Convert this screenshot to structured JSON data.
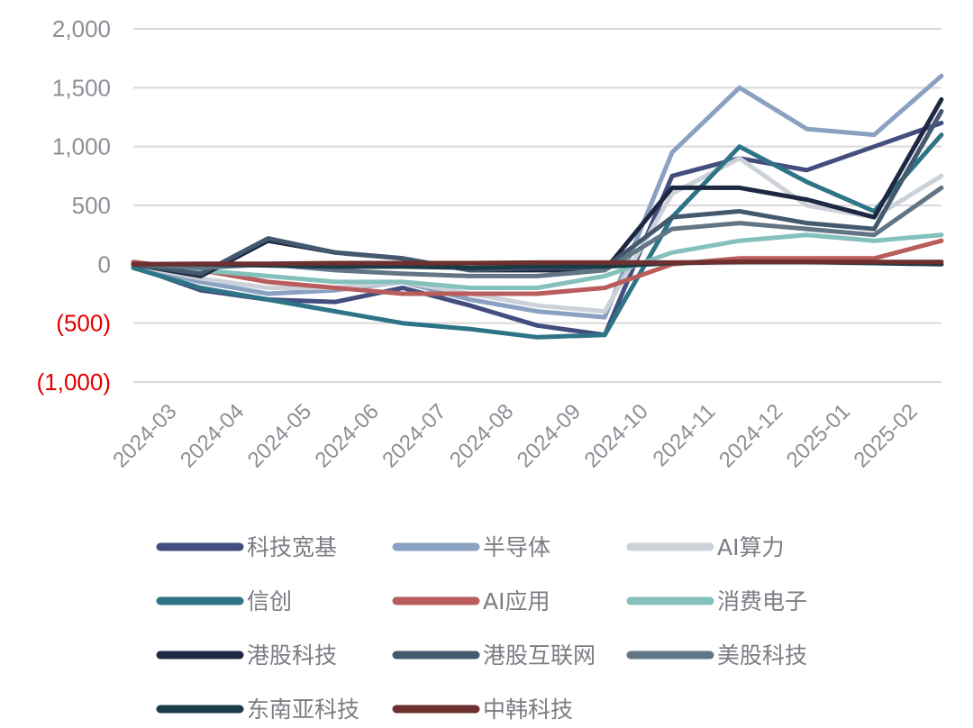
{
  "chart_data": {
    "type": "line",
    "title": "",
    "xlabel": "",
    "ylabel": "",
    "ylim": [
      -1000,
      2000
    ],
    "y_ticks": [
      {
        "value": 2000,
        "label": "2,000",
        "color": "#8c8f96"
      },
      {
        "value": 1500,
        "label": "1,500",
        "color": "#8c8f96"
      },
      {
        "value": 1000,
        "label": "1,000",
        "color": "#8c8f96"
      },
      {
        "value": 500,
        "label": "500",
        "color": "#8c8f96"
      },
      {
        "value": 0,
        "label": "0",
        "color": "#8c8f96"
      },
      {
        "value": -500,
        "label": "(500)",
        "color": "#e00000"
      },
      {
        "value": -1000,
        "label": "(1,000)",
        "color": "#e00000"
      }
    ],
    "x_ticks": [
      "2024-03",
      "2024-04",
      "2024-05",
      "2024-06",
      "2024-07",
      "2024-08",
      "2024-09",
      "2024-10",
      "2024-11",
      "2024-12",
      "2025-01",
      "2025-02"
    ],
    "grid": "horizontal",
    "legend_position": "bottom",
    "series": [
      {
        "name": "科技宽基",
        "color": "#434e7e",
        "values": [
          -20,
          -220,
          -300,
          -320,
          -200,
          -350,
          -520,
          -600,
          750,
          900,
          800,
          1000,
          1200
        ]
      },
      {
        "name": "半导体",
        "color": "#8aa1c1",
        "values": [
          -20,
          -150,
          -250,
          -220,
          -150,
          -300,
          -400,
          -450,
          950,
          1500,
          1150,
          1100,
          1600
        ]
      },
      {
        "name": "AI算力",
        "color": "#cdd1d8",
        "values": [
          -10,
          -120,
          -200,
          -200,
          -150,
          -250,
          -350,
          -400,
          600,
          900,
          500,
          400,
          750
        ]
      },
      {
        "name": "信创",
        "color": "#2e7487",
        "values": [
          -30,
          -200,
          -300,
          -400,
          -500,
          -550,
          -620,
          -600,
          400,
          1000,
          700,
          450,
          1100
        ]
      },
      {
        "name": "AI应用",
        "color": "#b85c5c",
        "values": [
          20,
          -50,
          -150,
          -200,
          -250,
          -250,
          -250,
          -200,
          0,
          50,
          50,
          50,
          200
        ]
      },
      {
        "name": "消费电子",
        "color": "#84c1bc",
        "values": [
          0,
          -50,
          -100,
          -150,
          -150,
          -200,
          -200,
          -100,
          100,
          200,
          250,
          200,
          250
        ]
      },
      {
        "name": "港股科技",
        "color": "#1f2843",
        "values": [
          0,
          -100,
          200,
          100,
          50,
          -50,
          -50,
          -50,
          650,
          650,
          550,
          400,
          1400
        ]
      },
      {
        "name": "港股互联网",
        "color": "#44596e",
        "values": [
          0,
          -80,
          220,
          100,
          50,
          -50,
          -30,
          -30,
          400,
          450,
          350,
          300,
          1300
        ]
      },
      {
        "name": "美股科技",
        "color": "#627585",
        "values": [
          0,
          -30,
          0,
          -50,
          -80,
          -100,
          -100,
          -50,
          300,
          350,
          300,
          250,
          650
        ]
      },
      {
        "name": "东南亚科技",
        "color": "#1b3b47",
        "values": [
          0,
          0,
          -10,
          -20,
          -20,
          -30,
          -20,
          -20,
          10,
          20,
          20,
          10,
          0
        ]
      },
      {
        "name": "中韩科技",
        "color": "#6e2f2f",
        "values": [
          0,
          5,
          5,
          10,
          10,
          10,
          15,
          15,
          15,
          20,
          20,
          20,
          20
        ]
      }
    ]
  }
}
